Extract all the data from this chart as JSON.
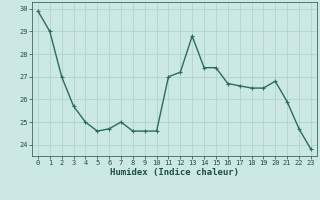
{
  "x": [
    0,
    1,
    2,
    3,
    4,
    5,
    6,
    7,
    8,
    9,
    10,
    11,
    12,
    13,
    14,
    15,
    16,
    17,
    18,
    19,
    20,
    21,
    22,
    23
  ],
  "y": [
    29.9,
    29.0,
    27.0,
    25.7,
    25.0,
    24.6,
    24.7,
    25.0,
    24.6,
    24.6,
    24.6,
    27.0,
    27.2,
    28.8,
    27.4,
    27.4,
    26.7,
    26.6,
    26.5,
    26.5,
    26.8,
    25.9,
    24.7,
    23.8
  ],
  "xlabel": "Humidex (Indice chaleur)",
  "ylim": [
    23.5,
    30.3
  ],
  "xlim": [
    -0.5,
    23.5
  ],
  "yticks": [
    24,
    25,
    26,
    27,
    28,
    29,
    30
  ],
  "xticks": [
    0,
    1,
    2,
    3,
    4,
    5,
    6,
    7,
    8,
    9,
    10,
    11,
    12,
    13,
    14,
    15,
    16,
    17,
    18,
    19,
    20,
    21,
    22,
    23
  ],
  "line_color": "#2a6b62",
  "marker": "+",
  "bg_color": "#cce8e5",
  "grid_color": "#aacfcc",
  "tick_label_color": "#1e4d49",
  "xlabel_color": "#1e4d49",
  "tick_fontsize": 5.0,
  "xlabel_fontsize": 6.5,
  "line_width": 1.0,
  "marker_size": 3.5,
  "marker_edge_width": 0.8
}
